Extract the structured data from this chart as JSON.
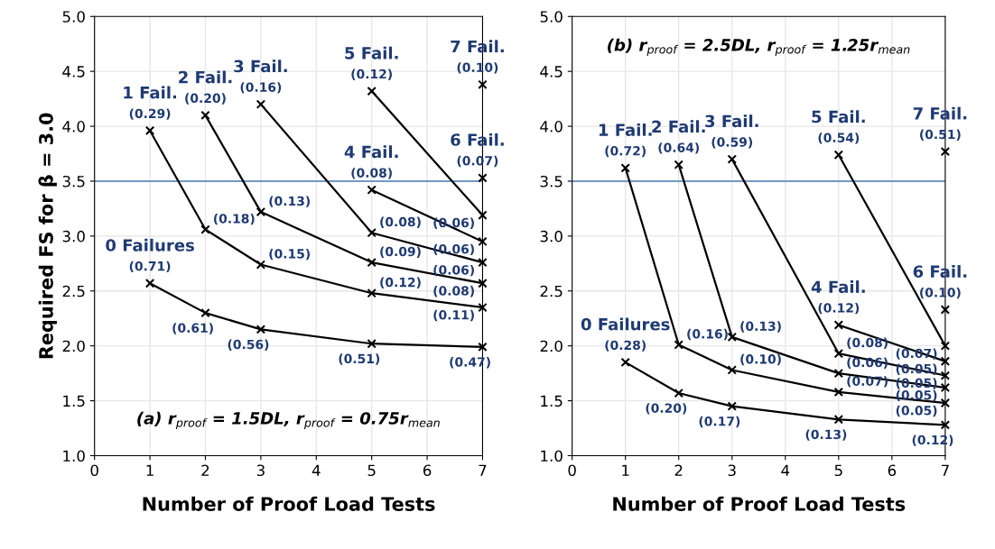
{
  "chart_data": [
    {
      "type": "line",
      "xlabel": "Number of Proof Load Tests",
      "ylabel": "Required FS for β = 3.0",
      "xlim": [
        0,
        7
      ],
      "xticks": [
        0,
        1,
        2,
        3,
        4,
        5,
        6,
        7
      ],
      "ylim": [
        1,
        5
      ],
      "yticks": [
        {
          "value": 1,
          "label": "1.0"
        },
        {
          "value": 1.5,
          "label": "1.5"
        },
        {
          "value": 2,
          "label": "2.0"
        },
        {
          "value": 2.5,
          "label": "2.5"
        },
        {
          "value": 3,
          "label": "3.0"
        },
        {
          "value": 3.5,
          "label": "3.5"
        },
        {
          "value": 4,
          "label": "4.0"
        },
        {
          "value": 4.5,
          "label": "4.5"
        },
        {
          "value": 5,
          "label": "5.0"
        }
      ],
      "grid": true,
      "marker": "cross",
      "line_style": "solid",
      "ref_lines": [
        {
          "axis": "y",
          "value": 3.5,
          "color": "#4a7ebb"
        }
      ],
      "series": [
        {
          "color": "#000000",
          "x": [
            1,
            2,
            3,
            5,
            7
          ],
          "values": [
            2.57,
            2.3,
            2.15,
            2.02,
            1.99
          ]
        },
        {
          "color": "#000000",
          "x": [
            1,
            2,
            3,
            5,
            7
          ],
          "values": [
            3.96,
            3.06,
            2.74,
            2.48,
            2.35
          ]
        },
        {
          "color": "#000000",
          "x": [
            2,
            3,
            5,
            7
          ],
          "values": [
            4.1,
            3.22,
            2.76,
            2.57
          ]
        },
        {
          "color": "#000000",
          "x": [
            3,
            5,
            7
          ],
          "values": [
            4.2,
            3.03,
            2.76
          ]
        },
        {
          "color": "#000000",
          "x": [
            5,
            7
          ],
          "values": [
            3.42,
            2.95
          ]
        },
        {
          "color": "#000000",
          "x": [
            5,
            7
          ],
          "values": [
            4.32,
            3.19
          ]
        },
        {
          "color": "#000000",
          "x": [
            7
          ],
          "values": [
            3.53
          ]
        },
        {
          "color": "#000000",
          "x": [
            7
          ],
          "values": [
            4.38
          ]
        }
      ],
      "annotations": [
        "(a) r$_{proof}$ = 1.5DL, r$_{proof}$ = 0.75r$_{mean}$",
        {
          "text": "(0.71)",
          "x": 1,
          "y": 2.57
        },
        {
          "text": "0 Failures",
          "x": 1,
          "y": 2.57
        },
        {
          "text": "(0.61)",
          "x": 2,
          "y": 2.3
        },
        {
          "text": "(0.56)",
          "x": 3,
          "y": 2.15
        },
        {
          "text": "(0.51)",
          "x": 5,
          "y": 2.02
        },
        {
          "text": "(0.47)",
          "x": 7,
          "y": 1.99
        },
        {
          "text": "(0.29)",
          "x": 1,
          "y": 3.96
        },
        {
          "text": "1 Fail.",
          "x": 1,
          "y": 3.96
        },
        {
          "text": "(0.18)",
          "x": 2,
          "y": 3.06
        },
        {
          "text": "(0.15)",
          "x": 3,
          "y": 2.74
        },
        {
          "text": "(0.12)",
          "x": 5,
          "y": 2.48
        },
        {
          "text": "(0.11)",
          "x": 7,
          "y": 2.35
        },
        {
          "text": "(0.20)",
          "x": 2,
          "y": 4.1
        },
        {
          "text": "2 Fail.",
          "x": 2,
          "y": 4.1
        },
        {
          "text": "(0.13)",
          "x": 3,
          "y": 3.22
        },
        {
          "text": "(0.09)",
          "x": 5,
          "y": 2.76
        },
        {
          "text": "(0.08)",
          "x": 7,
          "y": 2.57
        },
        {
          "text": "(0.16)",
          "x": 3,
          "y": 4.2
        },
        {
          "text": "3 Fail.",
          "x": 3,
          "y": 4.2
        },
        {
          "text": "(0.08)",
          "x": 5,
          "y": 3.03
        },
        {
          "text": "(0.06)",
          "x": 7,
          "y": 2.76
        },
        {
          "text": "(0.08)",
          "x": 5,
          "y": 3.42
        },
        {
          "text": "4 Fail.",
          "x": 5,
          "y": 3.42
        },
        {
          "text": "(0.06)",
          "x": 7,
          "y": 2.95
        },
        {
          "text": "(0.12)",
          "x": 5,
          "y": 4.32
        },
        {
          "text": "5 Fail.",
          "x": 5,
          "y": 4.32
        },
        {
          "text": "(0.06)",
          "x": 7,
          "y": 3.19
        },
        {
          "text": "(0.07)",
          "x": 7,
          "y": 3.53
        },
        {
          "text": "6 Fail.",
          "x": 7,
          "y": 3.53
        },
        {
          "text": "(0.10)",
          "x": 7,
          "y": 4.38
        },
        {
          "text": "7 Fail.",
          "x": 7,
          "y": 4.38
        }
      ]
    },
    {
      "type": "line",
      "xlabel": "Number of Proof Load Tests",
      "xlim": [
        0,
        7
      ],
      "xticks": [
        0,
        1,
        2,
        3,
        4,
        5,
        6,
        7
      ],
      "ylim": [
        1,
        5
      ],
      "yticks": [
        {
          "value": 1,
          "label": "1.0"
        },
        {
          "value": 1.5,
          "label": "1.5"
        },
        {
          "value": 2,
          "label": "2.0"
        },
        {
          "value": 2.5,
          "label": "2.5"
        },
        {
          "value": 3,
          "label": "3.0"
        },
        {
          "value": 3.5,
          "label": "3.5"
        },
        {
          "value": 4,
          "label": "4.0"
        },
        {
          "value": 4.5,
          "label": "4.5"
        },
        {
          "value": 5,
          "label": "5.0"
        }
      ],
      "grid": true,
      "marker": "cross",
      "line_style": "solid",
      "ref_lines": [
        {
          "axis": "y",
          "value": 3.5,
          "color": "#4a7ebb"
        }
      ],
      "series": [
        {
          "color": "#000000",
          "x": [
            1,
            2,
            3,
            5,
            7
          ],
          "values": [
            1.85,
            1.57,
            1.45,
            1.33,
            1.28
          ]
        },
        {
          "color": "#000000",
          "x": [
            1,
            2,
            3,
            5,
            7
          ],
          "values": [
            3.62,
            2.01,
            1.78,
            1.58,
            1.48
          ]
        },
        {
          "color": "#000000",
          "x": [
            2,
            3,
            5,
            7
          ],
          "values": [
            3.65,
            2.08,
            1.75,
            1.62
          ]
        },
        {
          "color": "#000000",
          "x": [
            3,
            5,
            7
          ],
          "values": [
            3.7,
            1.93,
            1.73
          ]
        },
        {
          "color": "#000000",
          "x": [
            5,
            7
          ],
          "values": [
            2.19,
            1.86
          ]
        },
        {
          "color": "#000000",
          "x": [
            5,
            7
          ],
          "values": [
            3.74,
            2.0
          ]
        },
        {
          "color": "#000000",
          "x": [
            7
          ],
          "values": [
            2.33
          ]
        },
        {
          "color": "#000000",
          "x": [
            7
          ],
          "values": [
            3.77
          ]
        }
      ],
      "annotations": [
        "(b) r$_{proof}$ = 2.5DL, r$_{proof}$ = 1.25r$_{mean}$",
        {
          "text": "(0.28)",
          "x": 1,
          "y": 1.85
        },
        {
          "text": "0 Failures",
          "x": 1,
          "y": 1.85
        },
        {
          "text": "(0.20)",
          "x": 2,
          "y": 1.57
        },
        {
          "text": "(0.17)",
          "x": 3,
          "y": 1.45
        },
        {
          "text": "(0.13)",
          "x": 5,
          "y": 1.33
        },
        {
          "text": "(0.12)",
          "x": 7,
          "y": 1.28
        },
        {
          "text": "(0.72)",
          "x": 1,
          "y": 3.62
        },
        {
          "text": "1 Fail.",
          "x": 1,
          "y": 3.62
        },
        {
          "text": "(0.16)",
          "x": 2,
          "y": 2.01
        },
        {
          "text": "(0.10)",
          "x": 3,
          "y": 1.78
        },
        {
          "text": "(0.07)",
          "x": 5,
          "y": 1.58
        },
        {
          "text": "(0.05)",
          "x": 7,
          "y": 1.48
        },
        {
          "text": "(0.64)",
          "x": 2,
          "y": 3.65
        },
        {
          "text": "2 Fail.",
          "x": 2,
          "y": 3.65
        },
        {
          "text": "(0.13)",
          "x": 3,
          "y": 2.08
        },
        {
          "text": "(0.06)",
          "x": 5,
          "y": 1.75
        },
        {
          "text": "(0.05)",
          "x": 7,
          "y": 1.62
        },
        {
          "text": "(0.59)",
          "x": 3,
          "y": 3.7
        },
        {
          "text": "3 Fail.",
          "x": 3,
          "y": 3.7
        },
        {
          "text": "(0.08)",
          "x": 5,
          "y": 1.93
        },
        {
          "text": "(0.05)",
          "x": 7,
          "y": 1.73
        },
        {
          "text": "(0.12)",
          "x": 5,
          "y": 2.19
        },
        {
          "text": "4 Fail.",
          "x": 5,
          "y": 2.19
        },
        {
          "text": "(0.05)",
          "x": 7,
          "y": 1.86
        },
        {
          "text": "(0.54)",
          "x": 5,
          "y": 3.74
        },
        {
          "text": "5 Fail.",
          "x": 5,
          "y": 3.74
        },
        {
          "text": "(0.07)",
          "x": 7,
          "y": 2.0
        },
        {
          "text": "(0.10)",
          "x": 7,
          "y": 2.33
        },
        {
          "text": "6 Fail.",
          "x": 7,
          "y": 2.33
        },
        {
          "text": "(0.51)",
          "x": 7,
          "y": 3.77
        },
        {
          "text": "7 Fail.",
          "x": 7,
          "y": 3.77
        }
      ]
    }
  ]
}
